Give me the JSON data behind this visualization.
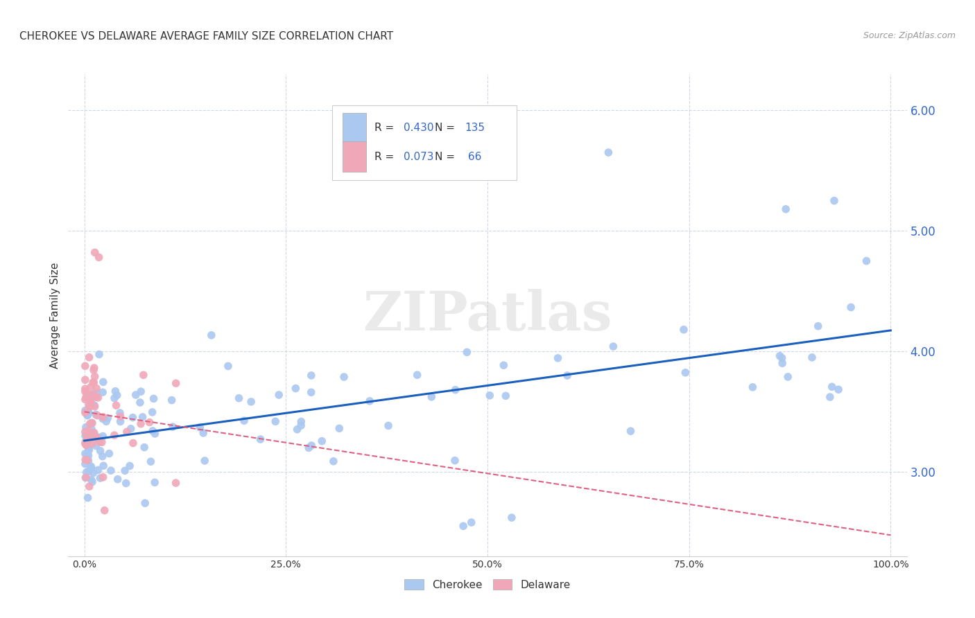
{
  "title": "CHEROKEE VS DELAWARE AVERAGE FAMILY SIZE CORRELATION CHART",
  "source": "Source: ZipAtlas.com",
  "ylabel": "Average Family Size",
  "yticks": [
    3.0,
    4.0,
    5.0,
    6.0
  ],
  "ylim": [
    2.3,
    6.3
  ],
  "xlim": [
    -0.02,
    1.02
  ],
  "xticks": [
    0.0,
    0.25,
    0.5,
    0.75,
    1.0
  ],
  "xticklabels": [
    "0.0%",
    "25.0%",
    "50.0%",
    "75.0%",
    "100.0%"
  ],
  "cherokee_color": "#aac8f0",
  "delaware_color": "#f0a8b8",
  "cherokee_line_color": "#1a5fbd",
  "delaware_line_color": "#e06080",
  "cherokee_R": 0.43,
  "cherokee_N": 135,
  "delaware_R": 0.073,
  "delaware_N": 66,
  "grid_color": "#d0d8e8",
  "background_color": "#ffffff",
  "watermark": "ZIPatlas",
  "tick_color": "#3366cc",
  "text_color": "#333333",
  "source_color": "#999999"
}
